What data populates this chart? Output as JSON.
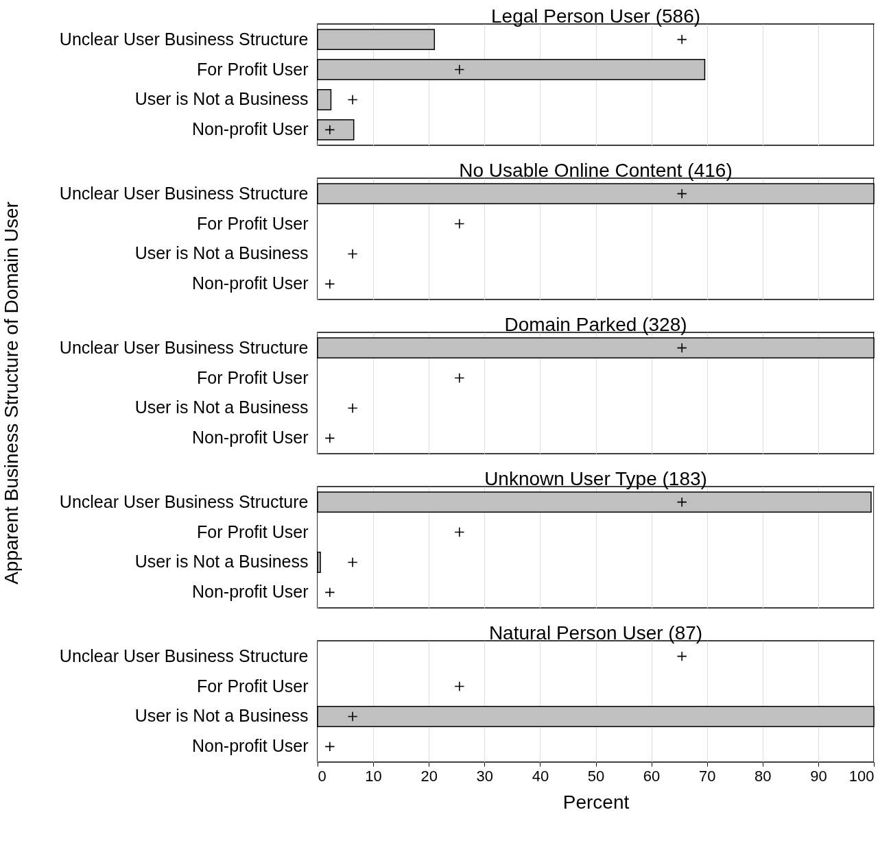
{
  "chart_data": [
    {
      "type": "bar",
      "orientation": "horizontal",
      "title": "Legal Person User (586)",
      "categories": [
        "Unclear User Business Structure",
        "For Profit User",
        "User is Not a Business",
        "Non-profit User"
      ],
      "xlim": [
        0,
        100
      ],
      "xticks": [
        0,
        10,
        20,
        30,
        40,
        50,
        60,
        70,
        80,
        90,
        100
      ],
      "grid": "x",
      "tick_labels": "y",
      "series": [
        {
          "type": "bar",
          "color": "#c0c0c0",
          "values": [
            21.0,
            69.6,
            2.4,
            6.5
          ]
        },
        {
          "type": "scatter",
          "color": "#000000",
          "marker": "cross",
          "values": [
            65.5,
            25.5,
            6.3,
            2.2
          ]
        }
      ]
    },
    {
      "type": "bar",
      "orientation": "horizontal",
      "title": "No Usable Online Content (416)",
      "categories": [
        "Unclear User Business Structure",
        "For Profit User",
        "User is Not a Business",
        "Non-profit User"
      ],
      "xlim": [
        0,
        100
      ],
      "xticks": [
        0,
        10,
        20,
        30,
        40,
        50,
        60,
        70,
        80,
        90,
        100
      ],
      "grid": "x",
      "tick_labels": "y",
      "series": [
        {
          "type": "bar",
          "color": "#c0c0c0",
          "values": [
            100,
            0,
            0,
            0
          ]
        },
        {
          "type": "scatter",
          "color": "#000000",
          "marker": "cross",
          "values": [
            65.5,
            25.5,
            6.3,
            2.2
          ]
        }
      ]
    },
    {
      "type": "bar",
      "orientation": "horizontal",
      "title": "Domain Parked (328)",
      "ylabel": "Apparent Business Structure of Domain User",
      "categories": [
        "Unclear User Business Structure",
        "For Profit User",
        "User is Not a Business",
        "Non-profit User"
      ],
      "xlim": [
        0,
        100
      ],
      "xticks": [
        0,
        10,
        20,
        30,
        40,
        50,
        60,
        70,
        80,
        90,
        100
      ],
      "grid": "x",
      "tick_labels": "y",
      "series": [
        {
          "type": "bar",
          "color": "#c0c0c0",
          "values": [
            100,
            0,
            0,
            0
          ]
        },
        {
          "type": "scatter",
          "color": "#000000",
          "marker": "cross",
          "values": [
            65.5,
            25.5,
            6.3,
            2.2
          ]
        }
      ]
    },
    {
      "type": "bar",
      "orientation": "horizontal",
      "title": "Unknown User Type (183)",
      "categories": [
        "Unclear User Business Structure",
        "For Profit User",
        "User is Not a Business",
        "Non-profit User"
      ],
      "xlim": [
        0,
        100
      ],
      "xticks": [
        0,
        10,
        20,
        30,
        40,
        50,
        60,
        70,
        80,
        90,
        100
      ],
      "grid": "x",
      "tick_labels": "y",
      "series": [
        {
          "type": "bar",
          "color": "#c0c0c0",
          "values": [
            99.5,
            0,
            0.5,
            0
          ]
        },
        {
          "type": "scatter",
          "color": "#000000",
          "marker": "cross",
          "values": [
            65.5,
            25.5,
            6.3,
            2.2
          ]
        }
      ]
    },
    {
      "type": "bar",
      "orientation": "horizontal",
      "title": "Natural Person User (87)",
      "xlabel": "Percent",
      "categories": [
        "Unclear User Business Structure",
        "For Profit User",
        "User is Not a Business",
        "Non-profit User"
      ],
      "xlim": [
        0,
        100
      ],
      "xticks": [
        0,
        10,
        20,
        30,
        40,
        50,
        60,
        70,
        80,
        90,
        100
      ],
      "grid": "x",
      "series": [
        {
          "type": "bar",
          "color": "#c0c0c0",
          "values": [
            0,
            0,
            100,
            0
          ]
        },
        {
          "type": "scatter",
          "color": "#000000",
          "marker": "cross",
          "values": [
            65.5,
            25.5,
            6.3,
            2.2
          ]
        }
      ]
    }
  ]
}
